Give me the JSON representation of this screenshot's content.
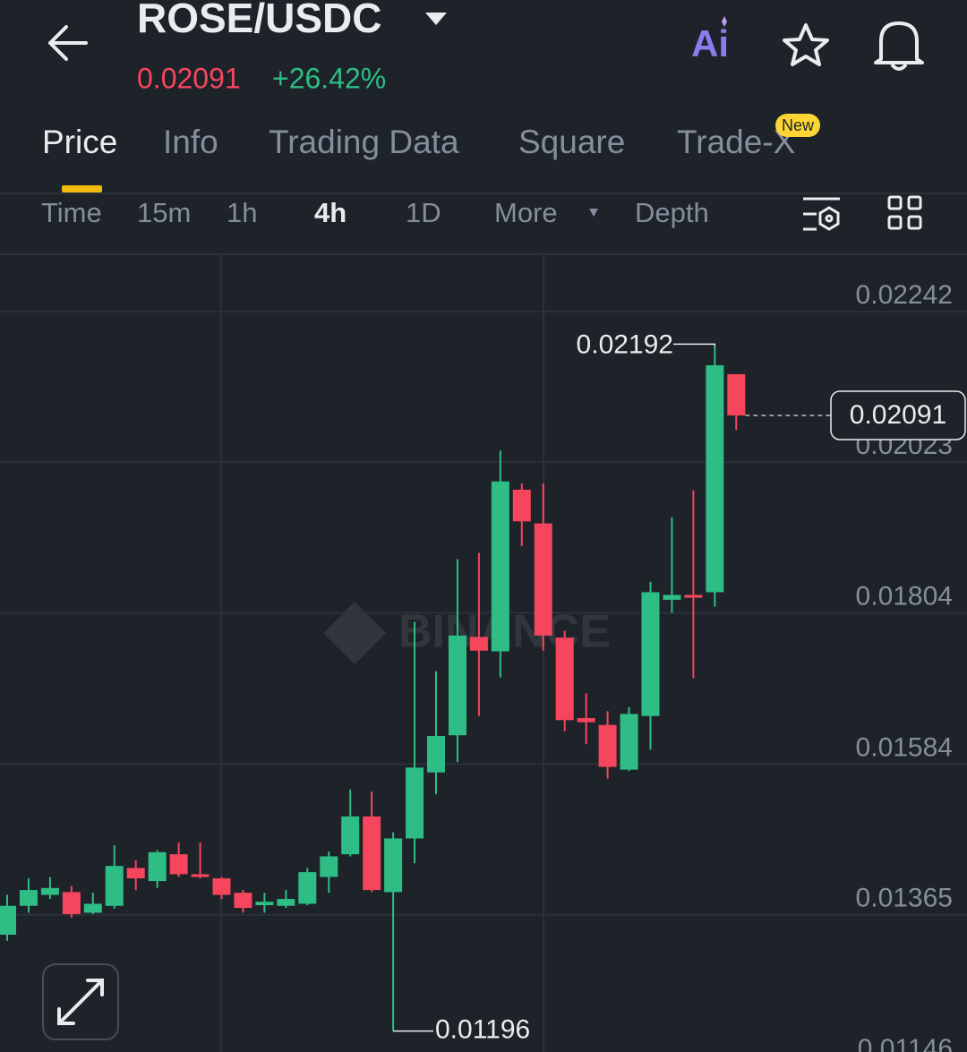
{
  "header": {
    "pair": "ROSE/USDC",
    "price": "0.02091",
    "change": "+26.42%"
  },
  "tabs": [
    "Price",
    "Info",
    "Trading Data",
    "Square",
    "Trade-X"
  ],
  "tab_badge": "New",
  "intervals": [
    "Time",
    "15m",
    "1h",
    "4h",
    "1D",
    "More",
    "Depth"
  ],
  "watermark": "BINANCE",
  "chart_data": {
    "type": "candlestick",
    "open": [
      0.01336,
      0.01378,
      0.01394,
      0.01398,
      0.01368,
      0.01378,
      0.01433,
      0.01414,
      0.01453,
      0.01424,
      0.01418,
      0.01397,
      0.01379,
      0.01378,
      0.01381,
      0.0142,
      0.01453,
      0.01508,
      0.01398,
      0.01476,
      0.01572,
      0.01626,
      0.01769,
      0.01748,
      0.01983,
      0.01934,
      0.01768,
      0.01651,
      0.01641,
      0.01576,
      0.01654,
      0.01823,
      0.0183,
      0.01834,
      0.02151
    ],
    "high": [
      0.01394,
      0.01418,
      0.0142,
      0.01407,
      0.01397,
      0.01466,
      0.01444,
      0.01459,
      0.0147,
      0.0147,
      0.0142,
      0.01401,
      0.01397,
      0.01401,
      0.01433,
      0.01457,
      0.01547,
      0.01544,
      0.01485,
      0.01791,
      0.01719,
      0.01882,
      0.01891,
      0.0204,
      0.01992,
      0.01992,
      0.01778,
      0.01687,
      0.01661,
      0.01667,
      0.01849,
      0.01943,
      0.01982,
      0.02192,
      0.02151
    ],
    "low": [
      0.01327,
      0.01368,
      0.01388,
      0.01361,
      0.01366,
      0.01374,
      0.01401,
      0.01404,
      0.0142,
      0.01418,
      0.01388,
      0.01368,
      0.01368,
      0.01375,
      0.01379,
      0.01397,
      0.0145,
      0.01398,
      0.01196,
      0.0144,
      0.0154,
      0.01587,
      0.01654,
      0.0171,
      0.01901,
      0.01749,
      0.01632,
      0.01613,
      0.01563,
      0.01574,
      0.01605,
      0.01804,
      0.01709,
      0.01813,
      0.0207
    ],
    "close": [
      0.01378,
      0.01401,
      0.01404,
      0.01366,
      0.01381,
      0.01436,
      0.01418,
      0.01456,
      0.01424,
      0.0142,
      0.01394,
      0.01375,
      0.01384,
      0.01388,
      0.01427,
      0.0145,
      0.01508,
      0.01401,
      0.01476,
      0.01579,
      0.01625,
      0.01771,
      0.01749,
      0.01995,
      0.01937,
      0.01771,
      0.01648,
      0.01645,
      0.0158,
      0.01657,
      0.01834,
      0.0183,
      0.01826,
      0.02164,
      0.02091
    ],
    "up_color": "#2ebd85",
    "down_color": "#f6465d",
    "ylim": [
      0.01146,
      0.02324
    ],
    "yticks": [
      0.02242,
      0.02023,
      0.01804,
      0.01584,
      0.01365,
      0.01146
    ],
    "grid": true
  }
}
